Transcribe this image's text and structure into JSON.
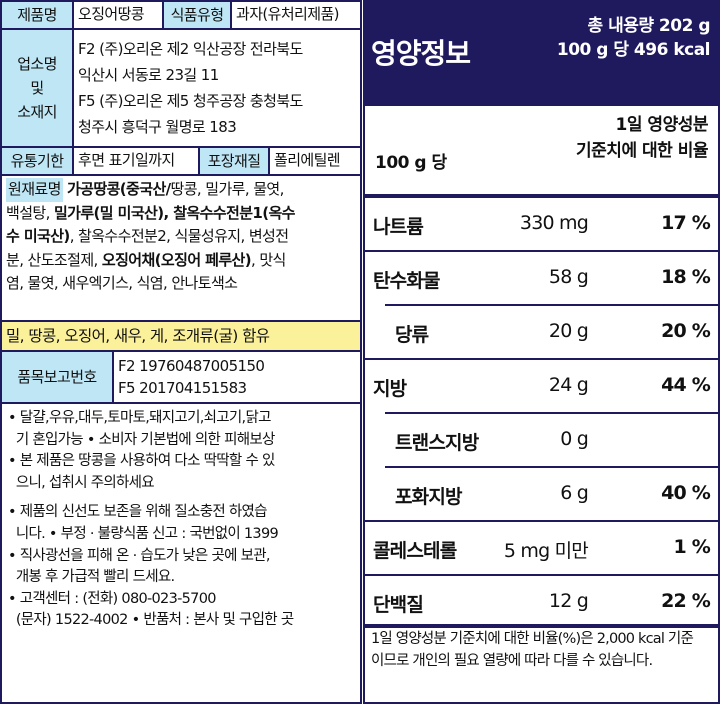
{
  "left": {
    "product_name_label": "제품명",
    "product_name": "오징어땅콩",
    "food_type_label": "식품유형",
    "food_type": "과자(유처리제품)",
    "maker_label_1": "업소명",
    "maker_label_2": "및",
    "maker_label_3": "소재지",
    "maker_lines": [
      "F2 (주)오리온 제2 익산공장 전라북도",
      "익산시 서동로 23길 11",
      "F5 (주)오리온 제5 청주공장 충청북도",
      "청주시 흥덕구 월명로 183"
    ],
    "expiry_label": "유통기한",
    "expiry": "후면 표기일까지",
    "packaging_label": "포장재질",
    "packaging": "폴리에틸렌",
    "ingredients_label": "원재료명",
    "ingredients": {
      "line1_bold": "가공땅콩(중국산/",
      "line1_rest": "땅콩, 밀가루, 물엿,",
      "line2_a": "백설탕, ",
      "line2_bold": "밀가루(밀 미국산), 찰옥수수전분1(옥수",
      "line3_bold": "수 미국산)",
      "line3_rest": ", 찰옥수수전분2, 식물성유지, 변성전",
      "line4_a": "분, 산도조절제, ",
      "line4_bold": "오징어채(오징어 페루산)",
      "line4_rest": ", 맛식",
      "line5": "염, 물엿, 새우엑기스, 식염, 안나토색소"
    },
    "allergen": "밀, 땅콩, 오징어, 새우, 게, 조개류(굴) 함유",
    "report_label": "품목보고번호",
    "report_numbers": [
      "F2 19760487005150",
      "F5 201704151583"
    ],
    "notices": [
      "• 달걀,우유,대두,토마토,돼지고기,쇠고기,닭고",
      "  기 혼입가능 • 소비자 기본법에 의한 피해보상",
      "• 본 제품은 땅콩을 사용하여 다소 딱딱할 수 있",
      "  으니, 섭취시 주의하세요",
      "• 제품의 신선도 보존을 위해 질소충전 하였습",
      "  니다. • 부정 · 불량식품 신고 : 국번없이 1399",
      "• 직사광선을 피해 온 · 습도가 낮은 곳에 보관,",
      "  개봉 후 가급적 빨리 드세요.",
      "• 고객센터 : (전화) 080-023-5700",
      "  (문자) 1522-4002 • 반품처 : 본사 및 구입한 곳"
    ]
  },
  "nutrition": {
    "title": "영양정보",
    "total": "총 내용량 202 g",
    "per_total": "100 g 당 496 kcal",
    "per_label": "100 g 당",
    "dv_header_1": "1일 영양성분",
    "dv_header_2": "기준치에 대한 비율",
    "rows": [
      {
        "name": "나트륨",
        "amount": "330 mg",
        "percent": "17 %"
      },
      {
        "name": "탄수화물",
        "amount": "58 g",
        "percent": "18 %"
      },
      {
        "name": "당류",
        "amount": "20 g",
        "percent": "20 %"
      },
      {
        "name": "지방",
        "amount": "24 g",
        "percent": "44 %"
      },
      {
        "name": "트랜스지방",
        "amount": "0 g",
        "percent": ""
      },
      {
        "name": "포화지방",
        "amount": "6 g",
        "percent": "40 %"
      },
      {
        "name": "콜레스테롤",
        "amount": "5 mg 미만",
        "percent": "1 %"
      },
      {
        "name": "단백질",
        "amount": "12 g",
        "percent": "22 %"
      }
    ],
    "footnote_line1": "1일 영양성분 기준치에 대한 비율(%)은 2,000 kcal 기준",
    "footnote_line2": "이므로 개인의 필요 열량에 따라 다를 수 있습니다.",
    "colors": {
      "navy": "#1f1a5e",
      "header_blue": "#bfe6f5",
      "allergen_yellow": "#fbf19a"
    }
  }
}
